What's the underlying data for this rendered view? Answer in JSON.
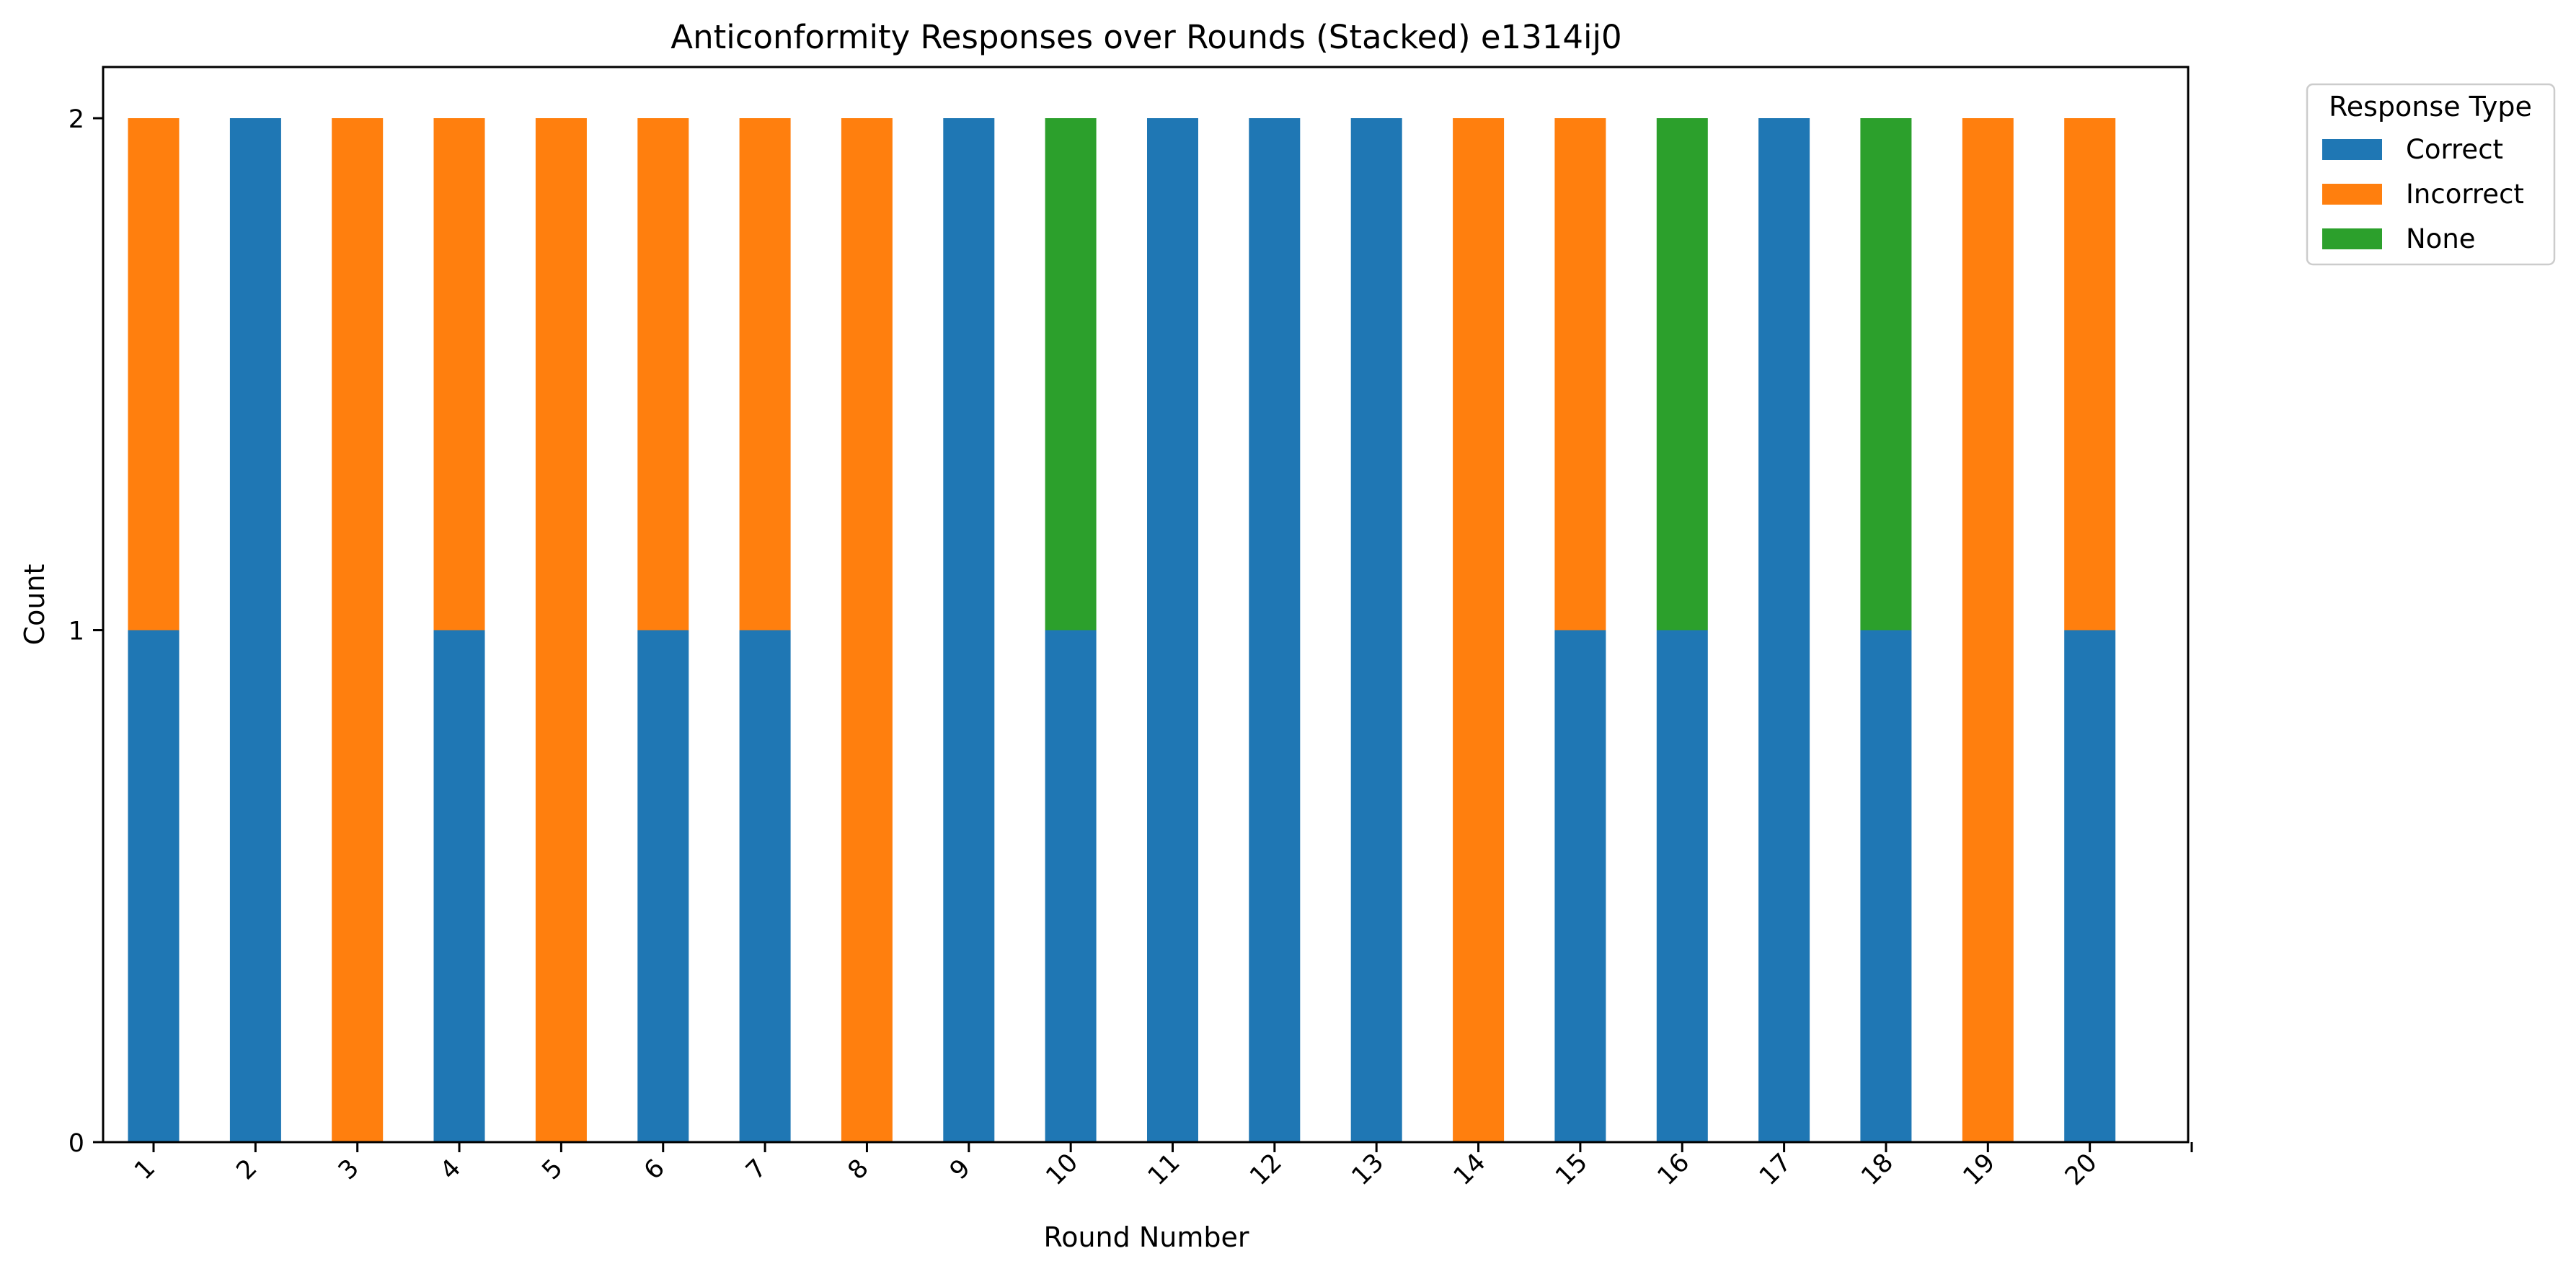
{
  "chart_data": {
    "type": "bar",
    "stacked": true,
    "title": "Anticonformity Responses over Rounds (Stacked) e1314ij0",
    "xlabel": "Round Number",
    "ylabel": "Count",
    "categories": [
      "1",
      "2",
      "3",
      "4",
      "5",
      "6",
      "7",
      "8",
      "9",
      "10",
      "11",
      "12",
      "13",
      "14",
      "15",
      "16",
      "17",
      "18",
      "19",
      "20"
    ],
    "series": [
      {
        "name": "Correct",
        "color": "#1f77b4",
        "values": [
          1,
          2,
          0,
          1,
          0,
          1,
          1,
          0,
          2,
          1,
          2,
          2,
          2,
          0,
          1,
          1,
          2,
          1,
          0,
          1
        ]
      },
      {
        "name": "Incorrect",
        "color": "#ff7f0e",
        "values": [
          1,
          0,
          2,
          1,
          2,
          1,
          1,
          2,
          0,
          0,
          0,
          0,
          0,
          2,
          1,
          0,
          0,
          0,
          2,
          1
        ]
      },
      {
        "name": "None",
        "color": "#2ca02c",
        "values": [
          0,
          0,
          0,
          0,
          0,
          0,
          0,
          0,
          0,
          1,
          0,
          0,
          0,
          0,
          0,
          1,
          0,
          1,
          0,
          0
        ]
      }
    ],
    "ylim": [
      0,
      2.1
    ],
    "yticks": [
      "0",
      "1",
      "2"
    ],
    "xtick_rotation": 45,
    "grid": false,
    "legend": {
      "title": "Response Type",
      "placement": "outside-top-right"
    }
  }
}
